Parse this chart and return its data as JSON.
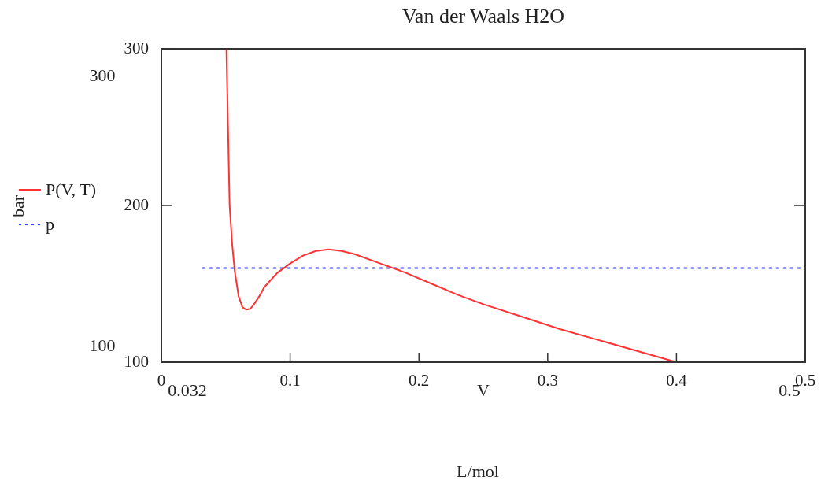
{
  "chart_data": {
    "type": "line",
    "title": "Van der Waals H2O",
    "xlabel": "V",
    "annotations": [
      "0.032",
      "0.5",
      "300",
      "100",
      "L/mol",
      "bar"
    ],
    "xlim": [
      0,
      0.5
    ],
    "xticks": [
      0,
      0.1,
      0.2,
      0.3,
      0.4,
      0.5
    ],
    "ylim": [
      100,
      300
    ],
    "yticks": [
      100,
      200,
      300
    ],
    "grid": false,
    "legend": "left",
    "marker": "none",
    "series": [
      {
        "name": "P(V, T)",
        "color": "#ff3333",
        "line_style": "solid",
        "x": [
          0.0505,
          0.052,
          0.053,
          0.055,
          0.057,
          0.06,
          0.063,
          0.066,
          0.069,
          0.072,
          0.076,
          0.08,
          0.09,
          0.1,
          0.11,
          0.12,
          0.13,
          0.14,
          0.15,
          0.17,
          0.19,
          0.21,
          0.23,
          0.25,
          0.28,
          0.31,
          0.34,
          0.37,
          0.4
        ],
        "values": [
          300,
          240,
          200,
          175,
          158,
          142,
          135,
          133.5,
          134,
          137,
          142,
          148,
          157,
          163,
          168,
          171,
          172,
          171,
          169,
          163,
          157,
          150,
          143,
          137,
          129,
          121,
          114,
          107,
          100
        ]
      },
      {
        "name": "p",
        "color": "#3333ff",
        "line_style": "dotted",
        "x": [
          0.032,
          0.5
        ],
        "values": [
          160,
          160
        ]
      }
    ]
  }
}
